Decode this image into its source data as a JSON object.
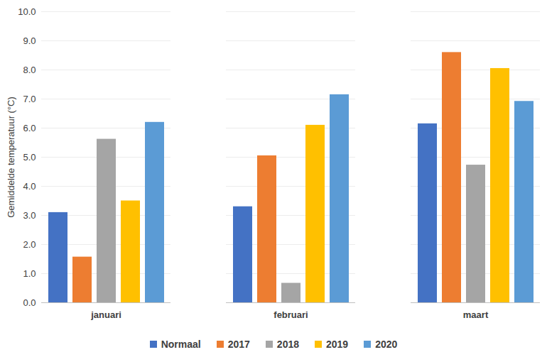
{
  "chart_data": {
    "type": "bar",
    "y_label": "Gemiddelde temperatuur (°C)",
    "categories": [
      "januari",
      "februari",
      "maart"
    ],
    "series": [
      {
        "name": "Normaal",
        "color": "#4472c4",
        "values": [
          3.1,
          3.3,
          6.15
        ]
      },
      {
        "name": "2017",
        "color": "#ed7d31",
        "values": [
          1.57,
          5.05,
          8.6
        ]
      },
      {
        "name": "2018",
        "color": "#a5a5a5",
        "values": [
          5.62,
          0.67,
          4.73
        ]
      },
      {
        "name": "2019",
        "color": "#ffc000",
        "values": [
          3.5,
          6.1,
          8.05
        ]
      },
      {
        "name": "2020",
        "color": "#5b9bd5",
        "values": [
          6.2,
          7.15,
          6.92
        ]
      }
    ],
    "ylim": [
      0,
      10
    ],
    "yticks": [
      {
        "value": 0,
        "label": "0.0"
      },
      {
        "value": 1,
        "label": "1.0"
      },
      {
        "value": 2,
        "label": "2.0"
      },
      {
        "value": 3,
        "label": "3.0"
      },
      {
        "value": 4,
        "label": "4.0"
      },
      {
        "value": 5,
        "label": "5.0"
      },
      {
        "value": 6,
        "label": "6.0"
      },
      {
        "value": 7,
        "label": "7.0"
      },
      {
        "value": 8,
        "label": "8.0"
      },
      {
        "value": 9,
        "label": "9.0"
      },
      {
        "value": 10,
        "label": "10.0"
      }
    ],
    "grid": true,
    "legend": "bottom"
  }
}
